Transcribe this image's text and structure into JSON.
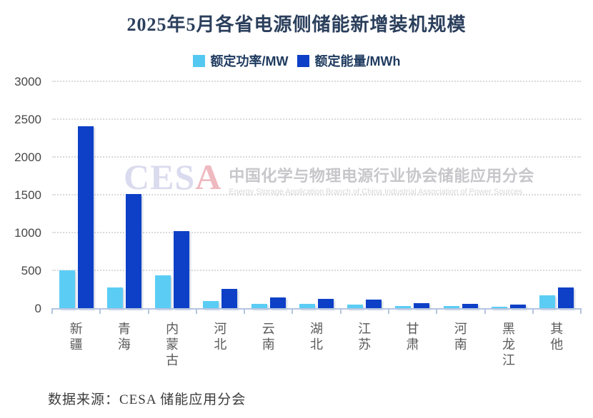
{
  "title": "2025年5月各省电源侧储能新增装机规模",
  "legend": {
    "items": [
      {
        "label": "额定功率/MW",
        "color": "#55c8f2"
      },
      {
        "label": "额定能量/MWh",
        "color": "#0d40c6"
      }
    ]
  },
  "watermark": {
    "logo_primary": "CES",
    "logo_accent": "A",
    "cn": "中国化学与物理电源行业协会储能应用分会",
    "en": "Energy Storage Application Branch of China Industrial Association of Power Sources"
  },
  "source_note": "数据来源：CESA 储能应用分会",
  "colors": {
    "power_bar": "#5bcdf5",
    "energy_bar": "#0d40c6",
    "axis": "#b4c4e0",
    "gridline": "#d9d9d9",
    "title_text": "#2b3f5c"
  },
  "chart_data": {
    "type": "bar",
    "title": "2025年5月各省电源侧储能新增装机规模",
    "categories": [
      "新疆",
      "青海",
      "内蒙古",
      "河北",
      "云南",
      "湖北",
      "江苏",
      "甘肃",
      "河南",
      "黑龙江",
      "其他"
    ],
    "series": [
      {
        "name": "额定功率/MW",
        "color": "#5bcdf5",
        "values": [
          510,
          280,
          445,
          100,
          70,
          65,
          55,
          40,
          38,
          25,
          180
        ]
      },
      {
        "name": "额定能量/MWh",
        "color": "#0d40c6",
        "values": [
          2420,
          1515,
          1030,
          265,
          150,
          135,
          125,
          75,
          70,
          55,
          285
        ]
      }
    ],
    "xlabel": "",
    "ylabel": "",
    "ylim": [
      0,
      3000
    ],
    "yticks": [
      0,
      500,
      1000,
      1500,
      2000,
      2500,
      3000
    ],
    "grid": "horizontal-dotted",
    "legend_position": "top-center",
    "x_tick_label_orientation": "vertical"
  }
}
